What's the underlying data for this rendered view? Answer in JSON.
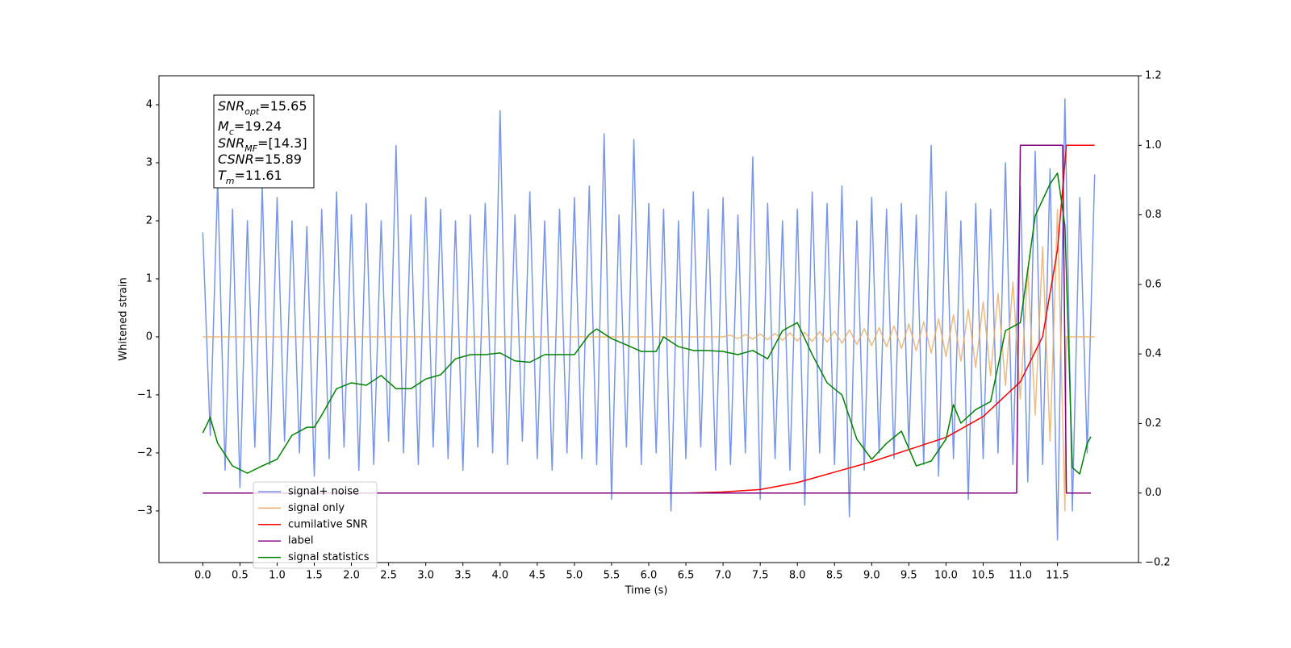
{
  "chart_data": {
    "type": "line",
    "xlabel": "Time (s)",
    "ylabel": "Whitened strain",
    "xlim": [
      -0.59,
      12.59
    ],
    "ylim": [
      -3.89,
      4.5
    ],
    "y2lim": [
      -0.2,
      1.2
    ],
    "xticks": [
      {
        "value": 0,
        "label": "0.0"
      },
      0.5,
      {
        "value": 1,
        "label": "1.0"
      },
      1.5,
      {
        "value": 2,
        "label": "2.0"
      },
      2.5,
      {
        "value": 3,
        "label": "3.0"
      },
      3.5,
      {
        "value": 4,
        "label": "4.0"
      },
      4.5,
      {
        "value": 5,
        "label": "5.0"
      },
      5.5,
      {
        "value": 6,
        "label": "6.0"
      },
      6.5,
      {
        "value": 7,
        "label": "7.0"
      },
      7.5,
      {
        "value": 8,
        "label": "8.0"
      },
      8.5,
      {
        "value": 9,
        "label": "9.0"
      },
      9.5,
      {
        "value": 10,
        "label": "10.0"
      },
      10.5,
      {
        "value": 11,
        "label": "11.0"
      },
      11.5
    ],
    "yticks": [
      {
        "value": -3,
        "label": "−3"
      },
      {
        "value": -2,
        "label": "−2"
      },
      {
        "value": -1,
        "label": "−1"
      },
      0,
      1,
      2,
      3,
      4
    ],
    "y2ticks": [
      {
        "value": -0.2,
        "label": "−0.2"
      },
      {
        "value": 0,
        "label": "0.0"
      },
      0.2,
      0.4,
      0.6,
      0.8,
      {
        "value": 1,
        "label": "1.0"
      },
      1.2
    ],
    "legend": "lower left",
    "annotation": [
      {
        "main": "SNR",
        "sub": "opt",
        "text": "=15.65"
      },
      {
        "main": "M",
        "sub": "c",
        "text": "=19.24"
      },
      {
        "main": "SNR",
        "sub": "MF",
        "text": "=[14.3]"
      },
      {
        "main": "CSNR",
        "text": "=15.89"
      },
      {
        "main": "T",
        "sub": "m",
        "text": "=11.61"
      }
    ],
    "series": [
      {
        "name": "signal+ noise",
        "color": "#7895e8",
        "x": [
          0,
          0.1,
          0.2,
          0.3,
          0.4,
          0.5,
          0.6,
          0.7,
          0.8,
          0.9,
          1,
          1.1,
          1.2,
          1.3,
          1.4,
          1.5,
          1.6,
          1.7,
          1.8,
          1.9,
          2,
          2.1,
          2.2,
          2.3,
          2.4,
          2.5,
          2.6,
          2.7,
          2.8,
          2.9,
          3,
          3.1,
          3.2,
          3.3,
          3.4,
          3.5,
          3.6,
          3.7,
          3.8,
          3.9,
          4,
          4.1,
          4.2,
          4.3,
          4.4,
          4.5,
          4.6,
          4.7,
          4.8,
          4.9,
          5,
          5.1,
          5.2,
          5.3,
          5.4,
          5.5,
          5.6,
          5.7,
          5.8,
          5.9,
          6,
          6.1,
          6.2,
          6.3,
          6.4,
          6.5,
          6.6,
          6.7,
          6.8,
          6.9,
          7,
          7.1,
          7.2,
          7.3,
          7.4,
          7.5,
          7.6,
          7.7,
          7.8,
          7.9,
          8,
          8.1,
          8.2,
          8.3,
          8.4,
          8.5,
          8.6,
          8.7,
          8.8,
          8.9,
          9,
          9.1,
          9.2,
          9.3,
          9.4,
          9.5,
          9.6,
          9.7,
          9.8,
          9.9,
          10,
          10.1,
          10.2,
          10.3,
          10.4,
          10.5,
          10.6,
          10.7,
          10.8,
          10.9,
          11,
          11.1,
          11.2,
          11.3,
          11.4,
          11.5,
          11.6,
          11.7,
          11.8,
          11.9,
          12
        ],
        "values": [
          1.8,
          -1.7,
          2.7,
          -2.3,
          2.2,
          -2.6,
          2.0,
          -1.9,
          2.6,
          -2.2,
          2.4,
          -1.8,
          2.0,
          -2.0,
          1.9,
          -2.4,
          2.2,
          -2.1,
          2.5,
          -1.9,
          2.1,
          -2.3,
          2.3,
          -2.2,
          2.0,
          -1.8,
          3.3,
          -2.0,
          2.1,
          -2.2,
          2.4,
          -1.9,
          2.2,
          -2.1,
          2.0,
          -2.3,
          2.1,
          -1.9,
          2.3,
          -2.0,
          3.9,
          -2.2,
          2.1,
          -1.8,
          2.5,
          -2.1,
          2.0,
          -2.3,
          2.2,
          -2.0,
          2.4,
          -2.1,
          2.6,
          -2.2,
          3.5,
          -2.8,
          2.1,
          -1.9,
          3.4,
          -2.2,
          2.3,
          -2.0,
          2.2,
          -3.0,
          2.0,
          -2.1,
          2.5,
          -1.9,
          2.2,
          -2.3,
          2.4,
          -2.2,
          2.1,
          -2.0,
          3.1,
          -2.8,
          2.3,
          -2.1,
          2.0,
          -2.3,
          2.2,
          -2.9,
          2.5,
          -2.0,
          2.3,
          -2.2,
          2.6,
          -3.1,
          2.0,
          -2.3,
          2.4,
          -2.0,
          2.2,
          -2.1,
          2.3,
          -1.9,
          2.1,
          -2.2,
          3.3,
          -2.4,
          2.5,
          -2.1,
          2.0,
          -2.8,
          2.3,
          -2.1,
          2.2,
          -2.0,
          3.0,
          -2.2,
          2.6,
          -2.5,
          3.2,
          -2.2,
          2.9,
          -3.5,
          4.1,
          -3.0,
          2.4,
          -2.0,
          2.8
        ]
      },
      {
        "name": "signal only",
        "color": "#e8aa62",
        "x": [
          0,
          7,
          7.1,
          7.2,
          7.3,
          7.4,
          7.5,
          7.6,
          7.7,
          7.8,
          7.9,
          8,
          8.1,
          8.2,
          8.3,
          8.4,
          8.5,
          8.6,
          8.7,
          8.8,
          8.9,
          9,
          9.1,
          9.2,
          9.3,
          9.4,
          9.5,
          9.6,
          9.7,
          9.8,
          9.9,
          10,
          10.1,
          10.2,
          10.3,
          10.4,
          10.5,
          10.6,
          10.7,
          10.8,
          10.9,
          11,
          11.1,
          11.2,
          11.3,
          11.4,
          11.5,
          11.6,
          11.62,
          12
        ],
        "values": [
          0,
          0,
          0.03,
          -0.03,
          0.04,
          -0.04,
          0.05,
          -0.05,
          0.06,
          -0.06,
          0.07,
          -0.07,
          0.08,
          -0.08,
          0.09,
          -0.09,
          0.1,
          -0.11,
          0.12,
          -0.13,
          0.14,
          -0.15,
          0.16,
          -0.17,
          0.19,
          -0.2,
          0.22,
          -0.24,
          0.26,
          -0.28,
          0.31,
          -0.34,
          0.38,
          -0.42,
          0.47,
          -0.53,
          0.6,
          -0.67,
          0.75,
          -0.84,
          0.95,
          -1.07,
          1.2,
          -1.35,
          1.55,
          -1.8,
          2.2,
          -3.0,
          0,
          0
        ]
      },
      {
        "name": "cumilative SNR",
        "color": "#ff0000",
        "axis": "y2",
        "x": [
          0,
          6.5,
          7,
          7.5,
          8,
          8.5,
          9,
          9.5,
          10,
          10.5,
          11,
          11.3,
          11.5,
          11.6,
          11.62,
          12
        ],
        "values": [
          0,
          0,
          0.003,
          0.01,
          0.03,
          0.06,
          0.09,
          0.125,
          0.16,
          0.22,
          0.32,
          0.45,
          0.7,
          0.95,
          1.0,
          1.0
        ]
      },
      {
        "name": "label",
        "color": "#800080",
        "axis": "y2",
        "x": [
          0,
          10.95,
          11.0,
          11.57,
          11.62,
          11.95
        ],
        "values": [
          0,
          0,
          1.0,
          1.0,
          0,
          0
        ]
      },
      {
        "name": "signal statistics",
        "color": "#008000",
        "axis": "y2",
        "x": [
          0,
          0.1,
          0.2,
          0.4,
          0.6,
          0.8,
          1.0,
          1.2,
          1.4,
          1.5,
          1.6,
          1.8,
          2.0,
          2.2,
          2.4,
          2.6,
          2.8,
          3.0,
          3.2,
          3.4,
          3.6,
          3.8,
          4.0,
          4.2,
          4.4,
          4.6,
          4.8,
          5.0,
          5.2,
          5.3,
          5.5,
          5.7,
          5.9,
          6.1,
          6.2,
          6.4,
          6.6,
          6.8,
          7.0,
          7.2,
          7.4,
          7.6,
          7.8,
          8.0,
          8.2,
          8.4,
          8.6,
          8.8,
          9.0,
          9.2,
          9.4,
          9.6,
          9.8,
          10.0,
          10.1,
          10.2,
          10.4,
          10.6,
          10.8,
          11.0,
          11.1,
          11.2,
          11.4,
          11.5,
          11.6,
          11.7,
          11.8,
          11.9,
          11.95
        ],
        "values": [
          0.173,
          0.217,
          0.143,
          0.078,
          0.057,
          0.078,
          0.097,
          0.166,
          0.189,
          0.189,
          0.224,
          0.3,
          0.317,
          0.31,
          0.338,
          0.3,
          0.3,
          0.328,
          0.34,
          0.386,
          0.398,
          0.398,
          0.403,
          0.38,
          0.376,
          0.398,
          0.398,
          0.398,
          0.456,
          0.472,
          0.444,
          0.426,
          0.407,
          0.407,
          0.449,
          0.421,
          0.41,
          0.41,
          0.407,
          0.398,
          0.41,
          0.386,
          0.467,
          0.49,
          0.398,
          0.317,
          0.282,
          0.155,
          0.097,
          0.143,
          0.178,
          0.078,
          0.092,
          0.155,
          0.254,
          0.201,
          0.24,
          0.263,
          0.467,
          0.49,
          0.641,
          0.797,
          0.889,
          0.92,
          0.769,
          0.073,
          0.055,
          0.143,
          0.162
        ]
      }
    ]
  }
}
